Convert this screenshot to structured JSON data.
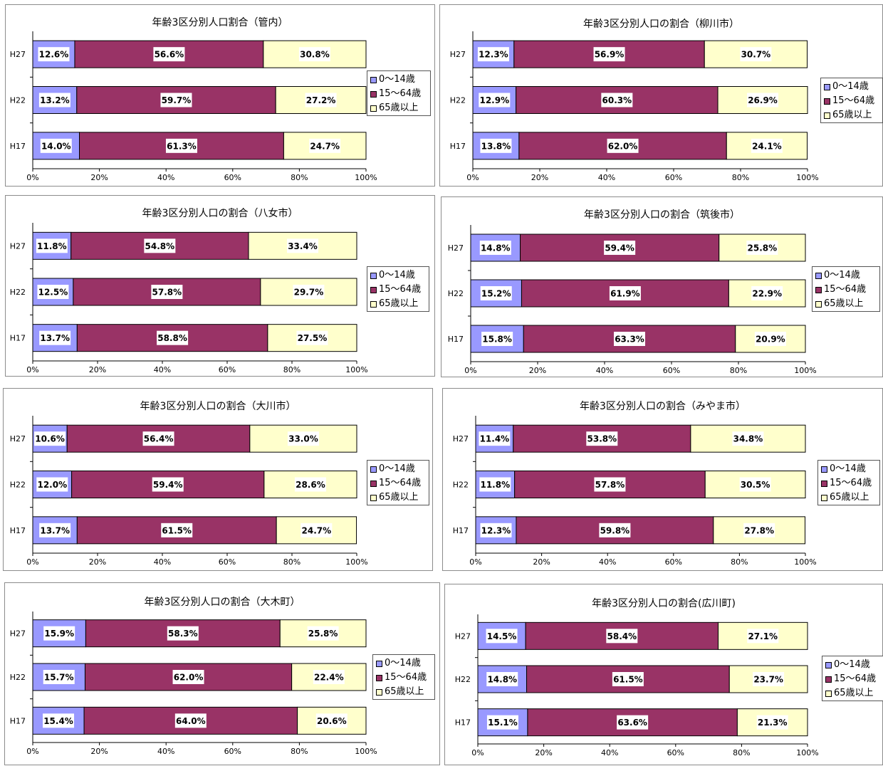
{
  "colors": {
    "age_0_14": "#9999FF",
    "age_15_64": "#993366",
    "age_65_plus": "#FFFFCC"
  },
  "legend": [
    "0～14歳",
    "15～64歳",
    "65歳以上"
  ],
  "chart_data": [
    {
      "type": "bar",
      "orientation": "horizontal",
      "stacked": true,
      "title": "年齢3区分別人口割合（管内）",
      "categories": [
        "H27",
        "H22",
        "H17"
      ],
      "series": [
        {
          "name": "0～14歳",
          "values": [
            12.6,
            13.2,
            14.0
          ]
        },
        {
          "name": "15～64歳",
          "values": [
            56.6,
            59.7,
            61.3
          ]
        },
        {
          "name": "65歳以上",
          "values": [
            30.8,
            27.2,
            24.7
          ]
        }
      ],
      "xlim": [
        0,
        100
      ],
      "xticks": [
        "0%",
        "20%",
        "40%",
        "60%",
        "80%",
        "100%"
      ],
      "legend_position": "right"
    },
    {
      "type": "bar",
      "orientation": "horizontal",
      "stacked": true,
      "title": "年齢3区分別人口の割合（柳川市）",
      "categories": [
        "H27",
        "H22",
        "H17"
      ],
      "series": [
        {
          "name": "0～14歳",
          "values": [
            12.3,
            12.9,
            13.8
          ]
        },
        {
          "name": "15～64歳",
          "values": [
            56.9,
            60.3,
            62.0
          ]
        },
        {
          "name": "65歳以上",
          "values": [
            30.7,
            26.9,
            24.1
          ]
        }
      ],
      "xlim": [
        0,
        100
      ],
      "xticks": [
        "0%",
        "20%",
        "40%",
        "60%",
        "80%",
        "100%"
      ],
      "legend_position": "right"
    },
    {
      "type": "bar",
      "orientation": "horizontal",
      "stacked": true,
      "title": "年齢3区分別人口の割合（八女市）",
      "categories": [
        "H27",
        "H22",
        "H17"
      ],
      "series": [
        {
          "name": "0～14歳",
          "values": [
            11.8,
            12.5,
            13.7
          ]
        },
        {
          "name": "15～64歳",
          "values": [
            54.8,
            57.8,
            58.8
          ]
        },
        {
          "name": "65歳以上",
          "values": [
            33.4,
            29.7,
            27.5
          ]
        }
      ],
      "xlim": [
        0,
        100
      ],
      "xticks": [
        "0%",
        "20%",
        "40%",
        "60%",
        "80%",
        "100%"
      ],
      "legend_position": "right"
    },
    {
      "type": "bar",
      "orientation": "horizontal",
      "stacked": true,
      "title": "年齢3区分別人口の割合（筑後市）",
      "categories": [
        "H27",
        "H22",
        "H17"
      ],
      "series": [
        {
          "name": "0～14歳",
          "values": [
            14.8,
            15.2,
            15.8
          ]
        },
        {
          "name": "15～64歳",
          "values": [
            59.4,
            61.9,
            63.3
          ]
        },
        {
          "name": "65歳以上",
          "values": [
            25.8,
            22.9,
            20.9
          ]
        }
      ],
      "xlim": [
        0,
        100
      ],
      "xticks": [
        "0%",
        "20%",
        "40%",
        "60%",
        "80%",
        "100%"
      ],
      "legend_position": "right"
    },
    {
      "type": "bar",
      "orientation": "horizontal",
      "stacked": true,
      "title": "年齢3区分別人口の割合（大川市）",
      "categories": [
        "H27",
        "H22",
        "H17"
      ],
      "series": [
        {
          "name": "0～14歳",
          "values": [
            10.6,
            12.0,
            13.7
          ]
        },
        {
          "name": "15～64歳",
          "values": [
            56.4,
            59.4,
            61.5
          ]
        },
        {
          "name": "65歳以上",
          "values": [
            33.0,
            28.6,
            24.7
          ]
        }
      ],
      "xlim": [
        0,
        100
      ],
      "xticks": [
        "0%",
        "20%",
        "40%",
        "60%",
        "80%",
        "100%"
      ],
      "legend_position": "right"
    },
    {
      "type": "bar",
      "orientation": "horizontal",
      "stacked": true,
      "title": "年齢3区分別人口の割合（みやま市）",
      "categories": [
        "H27",
        "H22",
        "H17"
      ],
      "series": [
        {
          "name": "0～14歳",
          "values": [
            11.4,
            11.8,
            12.3
          ]
        },
        {
          "name": "15～64歳",
          "values": [
            53.8,
            57.8,
            59.8
          ]
        },
        {
          "name": "65歳以上",
          "values": [
            34.8,
            30.5,
            27.8
          ]
        }
      ],
      "xlim": [
        0,
        100
      ],
      "xticks": [
        "0%",
        "20%",
        "40%",
        "60%",
        "80%",
        "100%"
      ],
      "legend_position": "right"
    },
    {
      "type": "bar",
      "orientation": "horizontal",
      "stacked": true,
      "title": "年齢3区分別人口の割合（大木町）",
      "categories": [
        "H27",
        "H22",
        "H17"
      ],
      "series": [
        {
          "name": "0～14歳",
          "values": [
            15.9,
            15.7,
            15.4
          ]
        },
        {
          "name": "15～64歳",
          "values": [
            58.3,
            62.0,
            64.0
          ]
        },
        {
          "name": "65歳以上",
          "values": [
            25.8,
            22.4,
            20.6
          ]
        }
      ],
      "xlim": [
        0,
        100
      ],
      "xticks": [
        "0%",
        "20%",
        "40%",
        "60%",
        "80%",
        "100%"
      ],
      "legend_position": "right"
    },
    {
      "type": "bar",
      "orientation": "horizontal",
      "stacked": true,
      "title": "年齢3区分別人口の割合(広川町)",
      "categories": [
        "H27",
        "H22",
        "H17"
      ],
      "series": [
        {
          "name": "0～14歳",
          "values": [
            14.5,
            14.8,
            15.1
          ]
        },
        {
          "name": "15～64歳",
          "values": [
            58.4,
            61.5,
            63.6
          ]
        },
        {
          "name": "65歳以上",
          "values": [
            27.1,
            23.7,
            21.3
          ]
        }
      ],
      "xlim": [
        0,
        100
      ],
      "xticks": [
        "0%",
        "20%",
        "40%",
        "60%",
        "80%",
        "100%"
      ],
      "legend_position": "right"
    }
  ]
}
